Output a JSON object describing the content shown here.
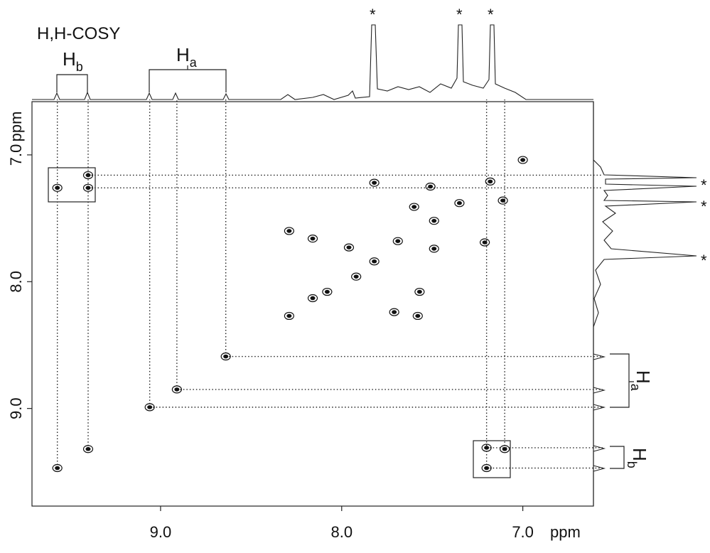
{
  "chart_data": {
    "type": "scatter",
    "title": "H,H-COSY",
    "x_unit": "ppm",
    "y_unit": "ppm",
    "xlim": [
      9.71,
      6.61
    ],
    "ylim": [
      6.58,
      9.77
    ],
    "xticks": [
      {
        "value": 9,
        "label": "9.0"
      },
      {
        "value": 8,
        "label": "8.0"
      },
      {
        "value": 7,
        "label": "7.0"
      }
    ],
    "yticks": [
      {
        "value": 7,
        "label": "7.0"
      },
      {
        "value": 8,
        "label": "8.0"
      },
      {
        "value": 9,
        "label": "9.0"
      }
    ],
    "x": [
      9.57,
      9.4,
      9.57,
      9.4,
      9.4,
      9.06,
      8.91,
      8.64,
      7.2,
      7.2,
      7.1,
      7.82,
      7.35,
      7.18,
      7.0,
      7.92,
      7.69,
      7.49,
      8.08,
      8.29,
      8.16,
      7.51,
      7.6,
      7.57,
      7.58,
      7.71,
      7.82,
      7.11,
      7.21,
      7.49,
      7.96,
      8.16,
      8.29
    ],
    "values": [
      9.47,
      9.32,
      7.26,
      7.16,
      7.26,
      8.99,
      8.85,
      8.59,
      9.31,
      9.47,
      9.32,
      7.84,
      7.38,
      7.21,
      7.04,
      7.96,
      7.68,
      7.52,
      8.08,
      8.27,
      8.13,
      7.25,
      7.41,
      8.08,
      8.27,
      8.24,
      7.22,
      7.36,
      7.69,
      7.74,
      7.73,
      7.66,
      7.6
    ],
    "color": "#111111",
    "labels": {
      "ha": {
        "main": "H",
        "sub": "a"
      },
      "hb": {
        "main": "H",
        "sub": "b"
      }
    },
    "annotations": [
      "*",
      "*",
      "*",
      "*",
      "*",
      "*"
    ]
  }
}
